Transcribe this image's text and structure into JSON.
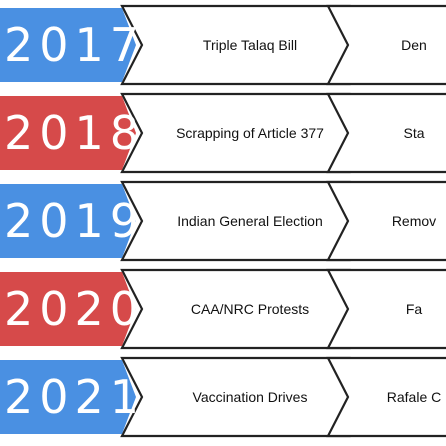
{
  "timeline": {
    "rows": [
      {
        "year": "2017",
        "color": "#4a90e2",
        "events": [
          "Triple Talaq Bill",
          "Den"
        ]
      },
      {
        "year": "2018",
        "color": "#d64a4a",
        "events": [
          "Scrapping of Article 377",
          "Sta"
        ]
      },
      {
        "year": "2019",
        "color": "#4a90e2",
        "events": [
          "Indian General Election",
          "Remov"
        ]
      },
      {
        "year": "2020",
        "color": "#d64a4a",
        "events": [
          "CAA/NRC Protests",
          "Fa"
        ]
      },
      {
        "year": "2021",
        "color": "#4a90e2",
        "events": [
          "Vaccination Drives",
          "Rafale C"
        ]
      }
    ]
  }
}
